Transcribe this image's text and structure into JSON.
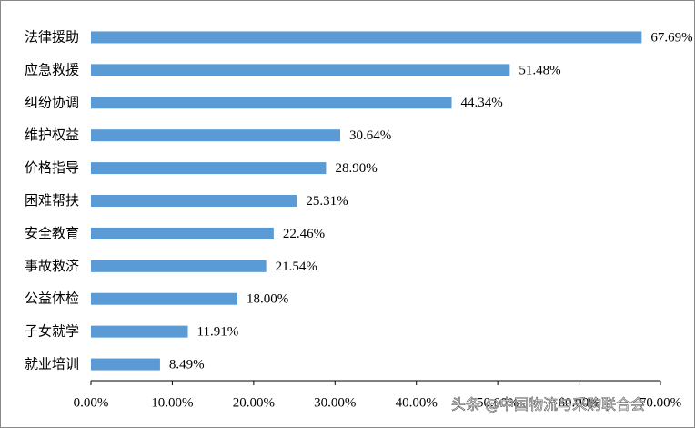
{
  "chart_data": {
    "type": "bar",
    "orientation": "horizontal",
    "categories": [
      "法律援助",
      "应急救援",
      "纠纷协调",
      "维护权益",
      "价格指导",
      "困难帮扶",
      "安全教育",
      "事故救济",
      "公益体检",
      "子女就学",
      "就业培训"
    ],
    "values": [
      67.69,
      51.48,
      44.34,
      30.64,
      28.9,
      25.31,
      22.46,
      21.54,
      18.0,
      11.91,
      8.49
    ],
    "value_labels": [
      "67.69%",
      "51.48%",
      "44.34%",
      "30.64%",
      "28.90%",
      "25.31%",
      "22.46%",
      "21.54%",
      "18.00%",
      "11.91%",
      "8.49%"
    ],
    "color": "#5b9bd5",
    "xlim": [
      0,
      70
    ],
    "xticks": [
      {
        "value": 0,
        "label": "0.00%"
      },
      {
        "value": 10,
        "label": "10.00%"
      },
      {
        "value": 20,
        "label": "20.00%"
      },
      {
        "value": 30,
        "label": "30.00%"
      },
      {
        "value": 40,
        "label": "40.00%"
      },
      {
        "value": 50,
        "label": "50.00%"
      },
      {
        "value": 60,
        "label": "60.00%"
      },
      {
        "value": 70,
        "label": "70.00%"
      }
    ],
    "grid": false,
    "watermark": "头条 @中国物流与采购联合会"
  }
}
